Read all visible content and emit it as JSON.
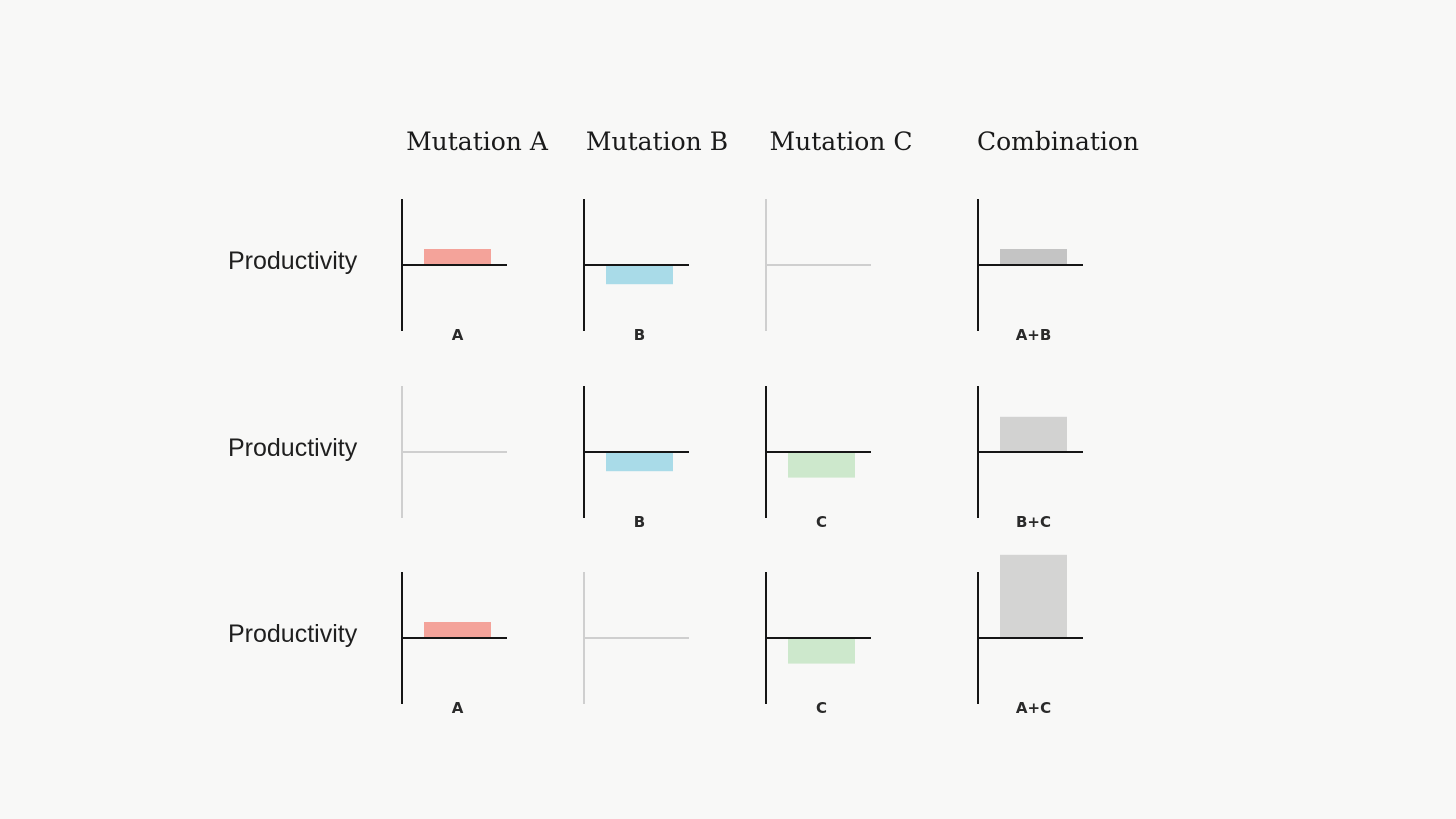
{
  "chart_data": {
    "type": "bar",
    "columns": [
      "Mutation A",
      "Mutation B",
      "Mutation C",
      "Combination"
    ],
    "rows": [
      {
        "label": "Productivity",
        "cells": [
          {
            "label": "A",
            "value": 1,
            "active": true,
            "color": "#f4a39a"
          },
          {
            "label": "B",
            "value": -1.2,
            "active": true,
            "color": "#a9dbe8"
          },
          {
            "label": "",
            "value": null,
            "active": false,
            "color": "#cccccc"
          },
          {
            "label": "A+B",
            "value": 1,
            "active": true,
            "color": "#c4c4c4"
          }
        ]
      },
      {
        "label": "Productivity",
        "cells": [
          {
            "label": "",
            "value": null,
            "active": false,
            "color": "#cccccc"
          },
          {
            "label": "B",
            "value": -1.2,
            "active": true,
            "color": "#a9dbe8"
          },
          {
            "label": "C",
            "value": -1.6,
            "active": true,
            "color": "#cde8cc"
          },
          {
            "label": "B+C",
            "value": 2.2,
            "active": true,
            "color": "#d2d2d1"
          }
        ]
      },
      {
        "label": "Productivity",
        "cells": [
          {
            "label": "A",
            "value": 1,
            "active": true,
            "color": "#f4a39a"
          },
          {
            "label": "",
            "value": null,
            "active": false,
            "color": "#cccccc"
          },
          {
            "label": "C",
            "value": -1.6,
            "active": true,
            "color": "#cde8cc"
          },
          {
            "label": "A+C",
            "value": 5.2,
            "active": true,
            "color": "#d4d4d3"
          }
        ]
      }
    ],
    "grid": false,
    "legend": "none"
  }
}
